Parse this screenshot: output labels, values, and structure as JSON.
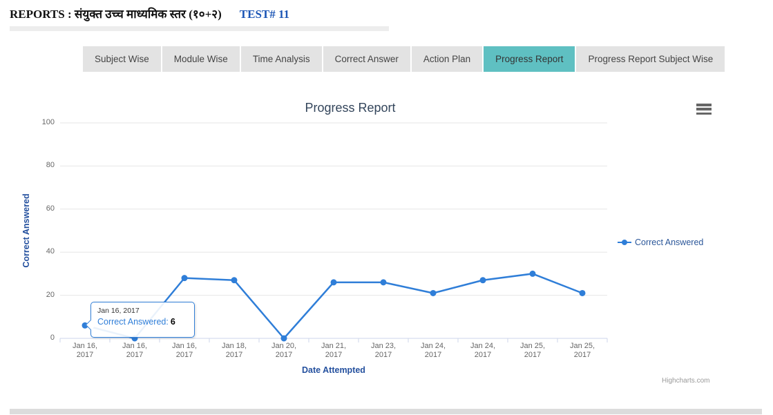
{
  "header": {
    "title": "REPORTS : संयुक्त उच्च माध्यमिक स्तर (१०+२)",
    "test_label": "TEST# 11"
  },
  "tabs": [
    {
      "label": "Subject Wise",
      "active": false
    },
    {
      "label": "Module Wise",
      "active": false
    },
    {
      "label": "Time Analysis",
      "active": false
    },
    {
      "label": "Correct Answer",
      "active": false
    },
    {
      "label": "Action Plan",
      "active": false
    },
    {
      "label": "Progress Report",
      "active": true
    },
    {
      "label": "Progress Report Subject Wise",
      "active": false
    }
  ],
  "chart_data": {
    "type": "line",
    "title": "Progress Report",
    "xlabel": "Date Attempted",
    "ylabel": "Correct Answered",
    "categories": [
      "Jan 16, 2017",
      "Jan 16, 2017",
      "Jan 16, 2017",
      "Jan 18, 2017",
      "Jan 20, 2017",
      "Jan 21, 2017",
      "Jan 23, 2017",
      "Jan 24, 2017",
      "Jan 24, 2017",
      "Jan 25, 2017",
      "Jan 25, 2017"
    ],
    "series": [
      {
        "name": "Correct Answered",
        "color": "#2f7ed8",
        "values": [
          6,
          0,
          28,
          27,
          0,
          26,
          26,
          21,
          27,
          30,
          21
        ]
      }
    ],
    "ylim": [
      0,
      100
    ],
    "yticks": [
      0,
      20,
      40,
      60,
      80,
      100
    ],
    "grid": true,
    "legend_position": "right"
  },
  "tooltip": {
    "date": "Jan 16, 2017",
    "series_label": "Correct Answered:",
    "value": "6"
  },
  "credits": "Highcharts.com",
  "icons": {
    "chart_menu": "hamburger-menu-icon"
  },
  "colors": {
    "series_blue": "#2f7ed8",
    "active_tab_teal": "#5fc0c2",
    "axis_title_blue": "#24509e",
    "gridline": "#e6e6e6",
    "axis_line": "#ccd6eb",
    "tick_label": "#666666"
  }
}
